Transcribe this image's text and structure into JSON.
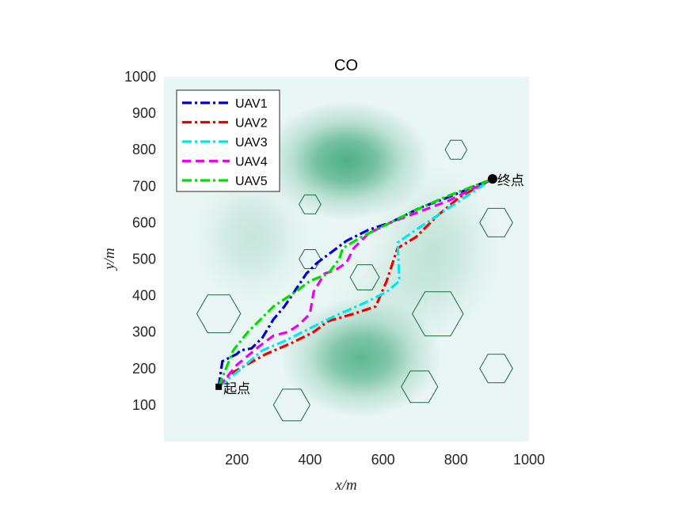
{
  "chart_data": {
    "type": "line",
    "title": "CO",
    "xlabel": "x/m",
    "ylabel": "y/m",
    "xlim": [
      0,
      1000
    ],
    "ylim": [
      0,
      1000
    ],
    "xticks": [
      200,
      400,
      600,
      800,
      1000
    ],
    "yticks": [
      100,
      200,
      300,
      400,
      500,
      600,
      700,
      800,
      900,
      1000
    ],
    "grid": false,
    "legend_position": "top-left",
    "background": {
      "base_color": "#eaf6f5",
      "peak_color": "#45ab80",
      "terrain_peaks": [
        {
          "x": 500,
          "y": 770,
          "sx": 105,
          "sy": 75,
          "a": 0.95
        },
        {
          "x": 540,
          "y": 230,
          "sx": 100,
          "sy": 75,
          "a": 0.85
        },
        {
          "x": 240,
          "y": 560,
          "sx": 75,
          "sy": 85,
          "a": 0.22
        },
        {
          "x": 740,
          "y": 520,
          "sx": 85,
          "sy": 110,
          "a": 0.25
        },
        {
          "x": 620,
          "y": 380,
          "sx": 80,
          "sy": 80,
          "a": 0.12
        }
      ]
    },
    "obstacles": {
      "color": "#1a6b3c",
      "items": [
        {
          "x": 800,
          "y": 800,
          "r": 30
        },
        {
          "x": 400,
          "y": 650,
          "r": 30
        },
        {
          "x": 910,
          "y": 600,
          "r": 45
        },
        {
          "x": 400,
          "y": 500,
          "r": 30
        },
        {
          "x": 550,
          "y": 450,
          "r": 40
        },
        {
          "x": 150,
          "y": 350,
          "r": 60
        },
        {
          "x": 750,
          "y": 350,
          "r": 70
        },
        {
          "x": 910,
          "y": 200,
          "r": 45
        },
        {
          "x": 700,
          "y": 150,
          "r": 50
        },
        {
          "x": 350,
          "y": 100,
          "r": 50
        }
      ]
    },
    "start": {
      "x": 150,
      "y": 150,
      "label": "起点"
    },
    "end": {
      "x": 900,
      "y": 720,
      "label": "终点"
    },
    "series": [
      {
        "name": "UAV1",
        "color": "#0000cc",
        "dash": "dashdot",
        "points": [
          [
            150,
            150
          ],
          [
            160,
            220
          ],
          [
            200,
            240
          ],
          [
            210,
            250
          ],
          [
            240,
            255
          ],
          [
            270,
            285
          ],
          [
            300,
            335
          ],
          [
            330,
            370
          ],
          [
            350,
            400
          ],
          [
            390,
            460
          ],
          [
            420,
            490
          ],
          [
            460,
            520
          ],
          [
            500,
            550
          ],
          [
            560,
            580
          ],
          [
            620,
            600
          ],
          [
            700,
            640
          ],
          [
            780,
            670
          ],
          [
            900,
            720
          ]
        ]
      },
      {
        "name": "UAV2",
        "color": "#ee0000",
        "dash": "dashdot",
        "points": [
          [
            150,
            150
          ],
          [
            190,
            190
          ],
          [
            280,
            240
          ],
          [
            350,
            270
          ],
          [
            410,
            300
          ],
          [
            450,
            330
          ],
          [
            520,
            350
          ],
          [
            580,
            370
          ],
          [
            610,
            440
          ],
          [
            640,
            530
          ],
          [
            690,
            560
          ],
          [
            750,
            620
          ],
          [
            810,
            670
          ],
          [
            900,
            720
          ]
        ]
      },
      {
        "name": "UAV3",
        "color": "#00e5ee",
        "dash": "dashdot",
        "points": [
          [
            150,
            150
          ],
          [
            200,
            190
          ],
          [
            270,
            250
          ],
          [
            330,
            275
          ],
          [
            400,
            310
          ],
          [
            470,
            345
          ],
          [
            550,
            380
          ],
          [
            610,
            410
          ],
          [
            645,
            440
          ],
          [
            640,
            545
          ],
          [
            690,
            580
          ],
          [
            780,
            640
          ],
          [
            900,
            720
          ]
        ]
      },
      {
        "name": "UAV4",
        "color": "#ee00ee",
        "dash": "dash",
        "points": [
          [
            150,
            150
          ],
          [
            200,
            210
          ],
          [
            260,
            260
          ],
          [
            300,
            290
          ],
          [
            340,
            300
          ],
          [
            370,
            320
          ],
          [
            400,
            350
          ],
          [
            410,
            410
          ],
          [
            440,
            460
          ],
          [
            470,
            470
          ],
          [
            500,
            490
          ],
          [
            520,
            530
          ],
          [
            560,
            570
          ],
          [
            620,
            600
          ],
          [
            700,
            630
          ],
          [
            780,
            660
          ],
          [
            900,
            720
          ]
        ]
      },
      {
        "name": "UAV5",
        "color": "#00dd00",
        "dash": "dashdot",
        "points": [
          [
            150,
            150
          ],
          [
            190,
            250
          ],
          [
            230,
            300
          ],
          [
            260,
            330
          ],
          [
            300,
            370
          ],
          [
            360,
            410
          ],
          [
            400,
            440
          ],
          [
            450,
            460
          ],
          [
            480,
            500
          ],
          [
            490,
            530
          ],
          [
            540,
            560
          ],
          [
            600,
            590
          ],
          [
            680,
            630
          ],
          [
            770,
            670
          ],
          [
            900,
            720
          ]
        ]
      }
    ]
  }
}
